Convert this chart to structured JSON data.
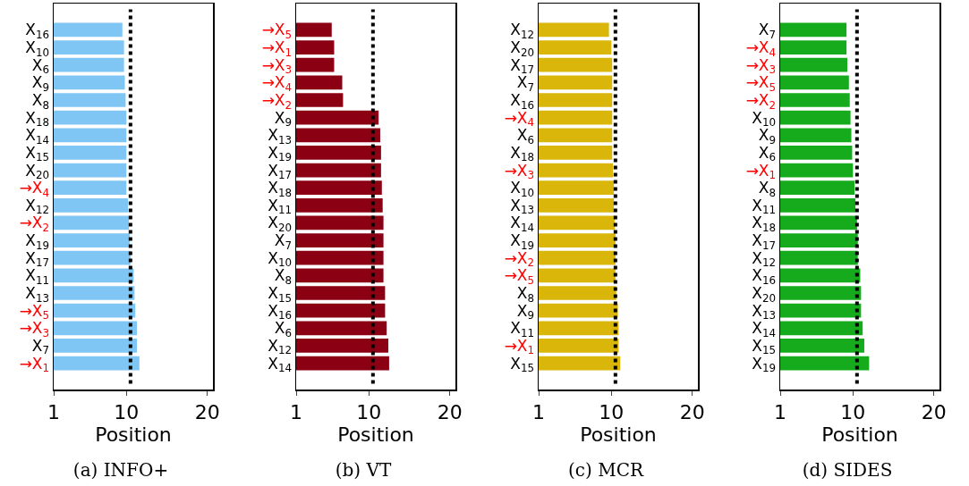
{
  "chart_data": [
    {
      "type": "bar",
      "orientation": "horizontal",
      "title": "(a) INFO+",
      "xlabel": "Position",
      "xlim": [
        1,
        20.7
      ],
      "xticks": [
        1,
        10,
        20
      ],
      "grid": false,
      "color": "#7fc6f4",
      "categories": [
        "X$_{16}$",
        "X$_{10}$",
        "X$_{6}$",
        "X$_{9}$",
        "X$_{8}$",
        "X$_{18}$",
        "X$_{14}$",
        "X$_{15}$",
        "X$_{20}$",
        "→X$_{4}$",
        "X$_{12}$",
        "→X$_{2}$",
        "X$_{19}$",
        "X$_{17}$",
        "X$_{11}$",
        "X$_{13}$",
        "→X$_{5}$",
        "→X$_{3}$",
        "X$_{7}$",
        "→X$_{1}$"
      ],
      "values": [
        9.5,
        9.7,
        9.7,
        9.8,
        9.9,
        10.0,
        10.0,
        10.0,
        10.0,
        10.0,
        10.2,
        10.3,
        10.4,
        10.5,
        10.9,
        11.0,
        11.1,
        11.3,
        11.3,
        11.6
      ],
      "ref_lines": [
        {
          "axis": "x",
          "value": 10.5,
          "color": "#000000",
          "line_style": "dotted"
        }
      ]
    },
    {
      "type": "bar",
      "orientation": "horizontal",
      "title": "(b) VT",
      "xlabel": "Position",
      "xlim": [
        1,
        20.7
      ],
      "xticks": [
        1,
        10,
        20
      ],
      "grid": false,
      "color": "#8b0012",
      "categories": [
        "→X$_{5}$",
        "→X$_{1}$",
        "→X$_{3}$",
        "→X$_{4}$",
        "→X$_{2}$",
        "X$_{9}$",
        "X$_{13}$",
        "X$_{19}$",
        "X$_{17}$",
        "X$_{18}$",
        "X$_{11}$",
        "X$_{20}$",
        "X$_{7}$",
        "X$_{10}$",
        "X$_{8}$",
        "X$_{15}$",
        "X$_{16}$",
        "X$_{6}$",
        "X$_{12}$",
        "X$_{14}$"
      ],
      "values": [
        5.4,
        5.7,
        5.7,
        6.7,
        6.8,
        11.2,
        11.4,
        11.5,
        11.5,
        11.6,
        11.7,
        11.8,
        11.8,
        11.8,
        11.8,
        12.0,
        12.0,
        12.2,
        12.4,
        12.5
      ],
      "ref_lines": [
        {
          "axis": "x",
          "value": 10.5,
          "color": "#000000",
          "line_style": "dotted"
        }
      ]
    },
    {
      "type": "bar",
      "orientation": "horizontal",
      "title": "(c) MCR",
      "xlabel": "Position",
      "xlim": [
        1,
        20.7
      ],
      "xticks": [
        1,
        10,
        20
      ],
      "grid": false,
      "color": "#dab60b",
      "categories": [
        "X$_{12}$",
        "X$_{20}$",
        "X$_{17}$",
        "X$_{7}$",
        "X$_{16}$",
        "→X$_{4}$",
        "X$_{6}$",
        "X$_{18}$",
        "→X$_{3}$",
        "X$_{10}$",
        "X$_{13}$",
        "X$_{14}$",
        "X$_{19}$",
        "→X$_{2}$",
        "→X$_{5}$",
        "X$_{8}$",
        "X$_{9}$",
        "X$_{11}$",
        "→X$_{1}$",
        "X$_{15}$"
      ],
      "values": [
        9.7,
        10.0,
        10.1,
        10.1,
        10.1,
        10.1,
        10.1,
        10.1,
        10.2,
        10.3,
        10.3,
        10.4,
        10.5,
        10.5,
        10.5,
        10.6,
        10.8,
        10.9,
        10.9,
        11.1
      ],
      "ref_lines": [
        {
          "axis": "x",
          "value": 10.5,
          "color": "#000000",
          "line_style": "dotted"
        }
      ]
    },
    {
      "type": "bar",
      "orientation": "horizontal",
      "title": "(d) SIDES",
      "xlabel": "Position",
      "xlim": [
        1,
        20.7
      ],
      "xticks": [
        1,
        10,
        20
      ],
      "grid": false,
      "color": "#16ab1c",
      "categories": [
        "X$_{7}$",
        "→X$_{4}$",
        "→X$_{3}$",
        "→X$_{5}$",
        "→X$_{2}$",
        "X$_{10}$",
        "X$_{9}$",
        "X$_{6}$",
        "→X$_{1}$",
        "X$_{8}$",
        "X$_{11}$",
        "X$_{18}$",
        "X$_{17}$",
        "X$_{12}$",
        "X$_{16}$",
        "X$_{20}$",
        "X$_{13}$",
        "X$_{14}$",
        "X$_{15}$",
        "X$_{19}$"
      ],
      "values": [
        9.2,
        9.2,
        9.3,
        9.5,
        9.6,
        9.7,
        9.8,
        9.9,
        10.0,
        10.2,
        10.3,
        10.5,
        10.6,
        10.6,
        10.9,
        11.0,
        11.0,
        11.2,
        11.4,
        12.0
      ],
      "ref_lines": [
        {
          "axis": "x",
          "value": 10.5,
          "color": "#000000",
          "line_style": "dotted"
        }
      ]
    }
  ]
}
